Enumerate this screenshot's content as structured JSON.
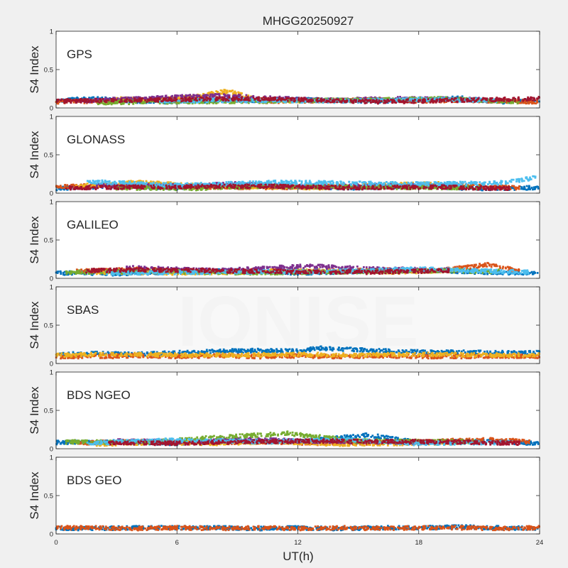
{
  "chart_data": {
    "type": "scatter",
    "title": "MHGG20250927",
    "watermark": "IONISE",
    "xlabel": "UT(h)",
    "ylabel": "S4 Index",
    "xlim": [
      0,
      24
    ],
    "ylim": [
      0,
      1
    ],
    "x_ticks": [
      "0",
      "6",
      "12",
      "18",
      "24"
    ],
    "y_ticks": [
      "0",
      "0.5",
      "1"
    ],
    "grid": false,
    "colors": [
      "#0072bd",
      "#d95319",
      "#edb120",
      "#7e2f8e",
      "#77ac30",
      "#4dbeee",
      "#a2142f"
    ],
    "panels": [
      {
        "label": "GPS",
        "series": [
          {
            "color": "#0072bd",
            "x": [
              0,
              2,
              4,
              6,
              8,
              10,
              12,
              14,
              16,
              18,
              20,
              22,
              24
            ],
            "y": [
              0.1,
              0.12,
              0.09,
              0.08,
              0.1,
              0.09,
              0.11,
              0.1,
              0.09,
              0.1,
              0.13,
              0.08,
              0.1
            ]
          },
          {
            "color": "#d95319",
            "x": [
              0,
              2,
              4,
              6,
              8,
              10,
              12,
              14,
              16,
              18,
              20,
              22,
              24
            ],
            "y": [
              0.08,
              0.09,
              0.11,
              0.1,
              0.12,
              0.08,
              0.09,
              0.1,
              0.11,
              0.09,
              0.1,
              0.09,
              0.08
            ]
          },
          {
            "color": "#edb120",
            "x": [
              3,
              5,
              7,
              8.5,
              10,
              12
            ],
            "y": [
              0.12,
              0.1,
              0.15,
              0.22,
              0.11,
              0.09
            ]
          },
          {
            "color": "#7e2f8e",
            "x": [
              1,
              4,
              8,
              13,
              17,
              21
            ],
            "y": [
              0.09,
              0.12,
              0.16,
              0.1,
              0.12,
              0.11
            ]
          },
          {
            "color": "#77ac30",
            "x": [
              2,
              6,
              11,
              15,
              19,
              23
            ],
            "y": [
              0.07,
              0.08,
              0.09,
              0.1,
              0.12,
              0.08
            ]
          },
          {
            "color": "#4dbeee",
            "x": [
              5,
              9,
              14,
              18,
              22
            ],
            "y": [
              0.09,
              0.1,
              0.09,
              0.11,
              0.1
            ]
          },
          {
            "color": "#a2142f",
            "x": [
              0,
              4,
              9,
              12,
              16,
              20,
              24
            ],
            "y": [
              0.09,
              0.1,
              0.12,
              0.11,
              0.08,
              0.1,
              0.12
            ]
          }
        ]
      },
      {
        "label": "GLONASS",
        "series": [
          {
            "color": "#0072bd",
            "x": [
              0,
              3,
              6,
              9,
              12,
              15,
              18,
              21,
              24
            ],
            "y": [
              0.06,
              0.09,
              0.07,
              0.1,
              0.08,
              0.07,
              0.09,
              0.06,
              0.07
            ]
          },
          {
            "color": "#d95319",
            "x": [
              0,
              2,
              5,
              8,
              11,
              14,
              17,
              20,
              23
            ],
            "y": [
              0.08,
              0.1,
              0.09,
              0.08,
              0.07,
              0.09,
              0.08,
              0.1,
              0.07
            ]
          },
          {
            "color": "#edb120",
            "x": [
              1,
              4,
              7,
              13,
              16,
              19
            ],
            "y": [
              0.09,
              0.14,
              0.1,
              0.07,
              0.11,
              0.12
            ]
          },
          {
            "color": "#7e2f8e",
            "x": [
              2,
              6,
              9,
              12,
              17,
              20
            ],
            "y": [
              0.1,
              0.09,
              0.12,
              0.08,
              0.1,
              0.09
            ]
          },
          {
            "color": "#77ac30",
            "x": [
              3,
              7,
              10,
              14,
              21
            ],
            "y": [
              0.07,
              0.06,
              0.09,
              0.08,
              0.07
            ]
          },
          {
            "color": "#4dbeee",
            "x": [
              1.5,
              6,
              11,
              18,
              22,
              23.8
            ],
            "y": [
              0.15,
              0.1,
              0.14,
              0.12,
              0.13,
              0.2
            ]
          },
          {
            "color": "#a2142f",
            "x": [
              0.5,
              5,
              10,
              15,
              19,
              22.5
            ],
            "y": [
              0.07,
              0.08,
              0.09,
              0.07,
              0.08,
              0.06
            ]
          }
        ]
      },
      {
        "label": "GALILEO",
        "series": [
          {
            "color": "#0072bd",
            "x": [
              0,
              3,
              6,
              9,
              12,
              15,
              18,
              21,
              24
            ],
            "y": [
              0.07,
              0.06,
              0.08,
              0.1,
              0.07,
              0.09,
              0.11,
              0.08,
              0.07
            ]
          },
          {
            "color": "#d95319",
            "x": [
              1,
              4,
              7,
              10,
              13,
              16,
              19,
              21.5,
              23
            ],
            "y": [
              0.09,
              0.12,
              0.08,
              0.1,
              0.09,
              0.11,
              0.1,
              0.18,
              0.09
            ]
          },
          {
            "color": "#edb120",
            "x": [
              2,
              6,
              11,
              14,
              17,
              20
            ],
            "y": [
              0.08,
              0.07,
              0.09,
              0.1,
              0.08,
              0.11
            ]
          },
          {
            "color": "#7e2f8e",
            "x": [
              3.5,
              8,
              12.5,
              16,
              20
            ],
            "y": [
              0.14,
              0.1,
              0.16,
              0.12,
              0.11
            ]
          },
          {
            "color": "#77ac30",
            "x": [
              0.5,
              5,
              9.5,
              18.5,
              22
            ],
            "y": [
              0.08,
              0.09,
              0.07,
              0.1,
              0.09
            ]
          },
          {
            "color": "#4dbeee",
            "x": [
              2.5,
              7.5,
              13.5,
              18,
              23.5
            ],
            "y": [
              0.07,
              0.08,
              0.09,
              0.12,
              0.08
            ]
          },
          {
            "color": "#a2142f",
            "x": [
              1.5,
              4.5,
              10.5,
              15.5,
              19.5
            ],
            "y": [
              0.1,
              0.11,
              0.09,
              0.08,
              0.1
            ]
          }
        ]
      },
      {
        "label": "SBAS",
        "series": [
          {
            "color": "#0072bd",
            "x": [
              0,
              2,
              4,
              6,
              8,
              10,
              12,
              13,
              14,
              16,
              18,
              20,
              22,
              24
            ],
            "y": [
              0.12,
              0.13,
              0.12,
              0.14,
              0.16,
              0.17,
              0.16,
              0.2,
              0.19,
              0.17,
              0.15,
              0.15,
              0.14,
              0.14
            ]
          },
          {
            "color": "#d95319",
            "x": [
              0,
              2,
              4,
              6,
              8,
              10,
              12,
              14,
              16,
              18,
              20,
              22,
              24
            ],
            "y": [
              0.09,
              0.09,
              0.1,
              0.09,
              0.1,
              0.09,
              0.1,
              0.09,
              0.1,
              0.09,
              0.09,
              0.1,
              0.09
            ]
          },
          {
            "color": "#edb120",
            "x": [
              0,
              3,
              6,
              9,
              12,
              15,
              18,
              21,
              24
            ],
            "y": [
              0.11,
              0.12,
              0.11,
              0.11,
              0.12,
              0.11,
              0.12,
              0.11,
              0.11
            ]
          }
        ]
      },
      {
        "label": "BDS NGEO",
        "series": [
          {
            "color": "#0072bd",
            "x": [
              0,
              3,
              6,
              9,
              12,
              15.5,
              18,
              21,
              24
            ],
            "y": [
              0.08,
              0.09,
              0.07,
              0.1,
              0.09,
              0.18,
              0.08,
              0.1,
              0.07
            ]
          },
          {
            "color": "#d95319",
            "x": [
              1,
              4,
              7,
              10,
              13,
              16,
              19,
              22,
              23.5
            ],
            "y": [
              0.07,
              0.1,
              0.08,
              0.09,
              0.07,
              0.08,
              0.1,
              0.12,
              0.09
            ]
          },
          {
            "color": "#edb120",
            "x": [
              2,
              5,
              8,
              11,
              14,
              17,
              20
            ],
            "y": [
              0.06,
              0.08,
              0.07,
              0.09,
              0.06,
              0.07,
              0.08
            ]
          },
          {
            "color": "#7e2f8e",
            "x": [
              3,
              6.5,
              9.5,
              12.5,
              18.5
            ],
            "y": [
              0.1,
              0.09,
              0.12,
              0.1,
              0.08
            ]
          },
          {
            "color": "#77ac30",
            "x": [
              0.5,
              4.5,
              7.5,
              11.5,
              15,
              21
            ],
            "y": [
              0.09,
              0.08,
              0.14,
              0.2,
              0.1,
              0.09
            ]
          },
          {
            "color": "#4dbeee",
            "x": [
              1.5,
              5.5,
              10.5,
              14.5,
              17.5,
              22.5
            ],
            "y": [
              0.07,
              0.11,
              0.09,
              0.12,
              0.07,
              0.08
            ]
          },
          {
            "color": "#a2142f",
            "x": [
              2.5,
              6,
              9,
              13.5,
              19.5,
              23
            ],
            "y": [
              0.08,
              0.07,
              0.09,
              0.1,
              0.09,
              0.07
            ]
          }
        ]
      },
      {
        "label": "BDS GEO",
        "series": [
          {
            "color": "#0072bd",
            "x": [
              0,
              2,
              4,
              6,
              8,
              10,
              12,
              14,
              16,
              18,
              20,
              22,
              24
            ],
            "y": [
              0.07,
              0.07,
              0.08,
              0.08,
              0.08,
              0.07,
              0.08,
              0.07,
              0.08,
              0.08,
              0.09,
              0.08,
              0.07
            ]
          },
          {
            "color": "#d95319",
            "x": [
              0,
              2,
              4,
              6,
              8,
              10,
              12,
              14,
              16,
              18,
              20,
              22,
              24
            ],
            "y": [
              0.08,
              0.08,
              0.07,
              0.08,
              0.07,
              0.08,
              0.07,
              0.08,
              0.07,
              0.08,
              0.08,
              0.07,
              0.08
            ]
          }
        ]
      }
    ]
  }
}
